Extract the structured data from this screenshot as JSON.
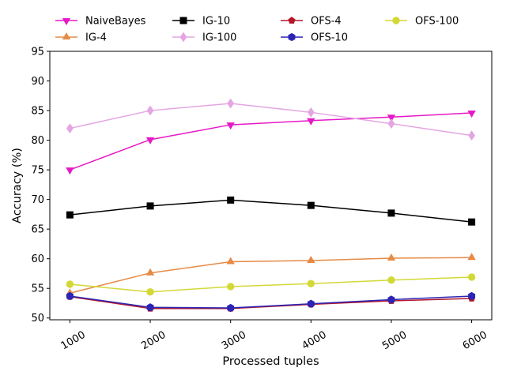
{
  "chart_data": {
    "type": "line",
    "xlabel": "Processed tuples",
    "ylabel": "Accuracy (%)",
    "x": [
      1000,
      2000,
      3000,
      4000,
      5000,
      6000
    ],
    "x_ticks": [
      "1000",
      "2000",
      "3000",
      "4000",
      "5000",
      "6000"
    ],
    "y_ticks": [
      "50",
      "55",
      "60",
      "65",
      "70",
      "75",
      "80",
      "85",
      "90",
      "95"
    ],
    "xlim": [
      750,
      6250
    ],
    "ylim": [
      49.7,
      95
    ],
    "grid": false,
    "legend_position": "top, above plot",
    "series": [
      {
        "name": "NaiveBayes",
        "color": "#e619c7",
        "marker": "triangle-down",
        "values": [
          75.0,
          80.1,
          82.6,
          83.3,
          83.9,
          84.6
        ]
      },
      {
        "name": "IG-4",
        "color": "#e68a45",
        "marker": "triangle-up",
        "values": [
          54.2,
          57.6,
          59.5,
          59.7,
          60.1,
          60.2
        ]
      },
      {
        "name": "IG-10",
        "color": "#000000",
        "marker": "square",
        "values": [
          67.4,
          68.9,
          69.9,
          69.0,
          67.7,
          66.2
        ]
      },
      {
        "name": "IG-100",
        "color": "#e4a5e3",
        "marker": "diamond",
        "values": [
          82.0,
          85.0,
          86.2,
          84.7,
          82.8,
          80.8
        ]
      },
      {
        "name": "OFS-4",
        "color": "#b3172a",
        "marker": "pentagon",
        "values": [
          53.6,
          51.6,
          51.6,
          52.3,
          52.9,
          53.3
        ]
      },
      {
        "name": "OFS-10",
        "color": "#2b24b5",
        "marker": "hexagon",
        "values": [
          53.7,
          51.8,
          51.7,
          52.4,
          53.1,
          53.7
        ]
      },
      {
        "name": "OFS-100",
        "color": "#d2d936",
        "marker": "circle",
        "values": [
          55.7,
          54.4,
          55.3,
          55.8,
          56.4,
          56.9
        ]
      }
    ]
  }
}
